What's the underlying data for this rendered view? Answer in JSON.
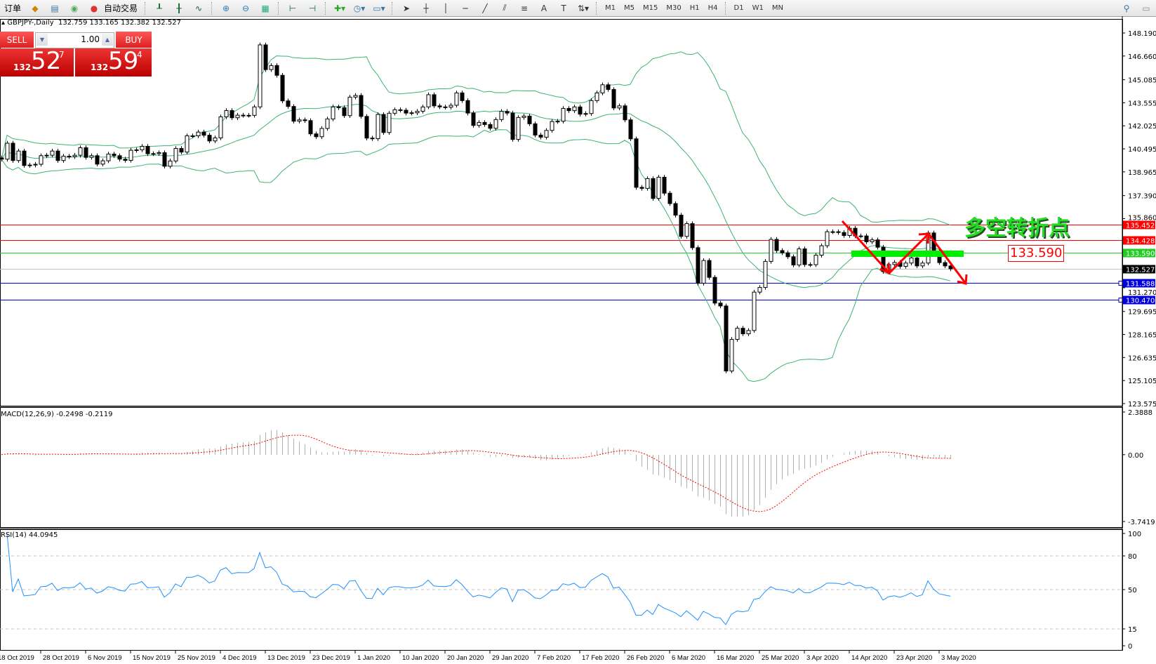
{
  "toolbar": {
    "new_order_label": "订单",
    "auto_trading_label": "自动交易",
    "timeframes": [
      "M1",
      "M5",
      "M15",
      "M30",
      "H1",
      "H4",
      "D1",
      "W1",
      "MN"
    ],
    "active_timeframe": "D1"
  },
  "chart_header": {
    "symbol": "GBPJPY-,Daily",
    "ohlc": "132.759 133.165 132.382 132.527"
  },
  "trade_panel": {
    "sell_label": "SELL",
    "buy_label": "BUY",
    "lot": "1.00",
    "sell_price": {
      "prefix": "132",
      "big": "52",
      "sup": "7"
    },
    "buy_price": {
      "prefix": "132",
      "big": "59",
      "sup": "4"
    }
  },
  "annotation": {
    "text": "多空转折点",
    "price_label": "133.590"
  },
  "colors": {
    "bands": "#3cb371",
    "resistance": "#ff0000",
    "pivot": "#22cc22",
    "support": "#0000dd",
    "bid_line": "#c0c0c0",
    "macd_signal": "#ff0000",
    "rsi": "#1e90ff",
    "arrows": "#ff0000"
  },
  "chart_data": [
    {
      "type": "candlestick",
      "panel": "main",
      "title": "GBPJPY-,Daily",
      "indicator": "Bollinger Bands",
      "y_ticks": [
        "148.190",
        "146.660",
        "145.085",
        "143.555",
        "142.025",
        "140.495",
        "138.965",
        "137.390",
        "135.860",
        "131.270",
        "129.695",
        "128.165",
        "126.635",
        "125.105",
        "123.575"
      ],
      "ylim": [
        123.575,
        148.19
      ],
      "x_tick_labels": [
        "18 Oct 2019",
        "28 Oct 2019",
        "6 Nov 2019",
        "15 Nov 2019",
        "25 Nov 2019",
        "4 Dec 2019",
        "13 Dec 2019",
        "23 Dec 2019",
        "1 Jan 2020",
        "10 Jan 2020",
        "20 Jan 2020",
        "29 Jan 2020",
        "7 Feb 2020",
        "17 Feb 2020",
        "26 Feb 2020",
        "6 Mar 2020",
        "16 Mar 2020",
        "25 Mar 2020",
        "3 Apr 2020",
        "14 Apr 2020",
        "23 Apr 2020",
        "3 May 2020"
      ],
      "close": [
        139.81,
        140.87,
        139.72,
        140.35,
        139.39,
        139.42,
        139.47,
        140.04,
        140.07,
        140.35,
        139.72,
        140.01,
        139.98,
        140.07,
        140.57,
        139.93,
        140.04,
        139.48,
        139.7,
        140.15,
        140.04,
        139.81,
        139.73,
        140.4,
        140.43,
        140.66,
        140.17,
        140.18,
        140.24,
        139.34,
        139.69,
        140.52,
        140.28,
        141.36,
        141.36,
        141.61,
        141.4,
        141.02,
        141.22,
        142.62,
        143.04,
        142.56,
        142.73,
        142.72,
        142.72,
        143.28,
        147.4,
        145.76,
        146.03,
        145.38,
        143.68,
        143.31,
        142.33,
        142.42,
        142.37,
        141.49,
        141.3,
        141.85,
        142.48,
        143.28,
        143.23,
        142.7,
        143.93,
        144.04,
        142.65,
        141.21,
        141.17,
        142.78,
        141.58,
        142.86,
        143.09,
        143.06,
        142.87,
        142.89,
        142.99,
        143.28,
        144.09,
        143.35,
        143.28,
        143.26,
        143.39,
        144.21,
        143.7,
        142.87,
        142.05,
        142.25,
        142.11,
        141.86,
        142.44,
        142.98,
        142.87,
        141.12,
        142.58,
        142.67,
        142.16,
        141.41,
        141.27,
        141.72,
        142.31,
        142.33,
        143.18,
        143.03,
        143.28,
        142.8,
        142.84,
        143.7,
        144.21,
        144.75,
        144.44,
        143.21,
        143.35,
        142.42,
        141.16,
        137.94,
        137.87,
        138.52,
        137.2,
        138.61,
        137.55,
        136.86,
        136.09,
        134.68,
        135.53,
        133.93,
        131.57,
        133.08,
        131.96,
        130.25,
        130.06,
        125.74,
        127.84,
        128.58,
        128.21,
        128.43,
        130.98,
        131.29,
        133.02,
        134.48,
        133.74,
        133.59,
        133.33,
        132.78,
        133.85,
        132.81,
        132.8,
        133.43,
        134.06,
        134.99,
        134.99,
        134.94,
        134.74,
        135.22,
        134.71,
        134.71,
        134.32,
        134.45,
        133.96,
        132.35,
        132.81,
        132.95,
        132.69,
        132.91,
        133.25,
        132.72,
        132.91,
        134.91,
        133.72,
        132.94,
        132.72,
        132.527
      ],
      "horizontal_lines": [
        {
          "price": "135.452",
          "kind": "resistance"
        },
        {
          "price": "134.428",
          "kind": "resistance"
        },
        {
          "price": "133.590",
          "kind": "pivot"
        },
        {
          "price": "132.527",
          "kind": "bid"
        },
        {
          "price": "131.588",
          "kind": "support"
        },
        {
          "price": "130.470",
          "kind": "support"
        }
      ]
    },
    {
      "type": "bar",
      "panel": "macd",
      "label": "MACD(12,26,9) -0.2498 -0.2119",
      "y_ticks": [
        "2.3888",
        "0.00",
        "-3.7419"
      ],
      "ylim": [
        -3.7419,
        2.3888
      ]
    },
    {
      "type": "line",
      "panel": "rsi",
      "label": "RSI(14) 44.0945",
      "y_ticks": [
        "100",
        "80",
        "50",
        "15",
        "0"
      ],
      "levels": [
        80,
        50,
        15
      ],
      "ylim": [
        0,
        100
      ]
    }
  ]
}
